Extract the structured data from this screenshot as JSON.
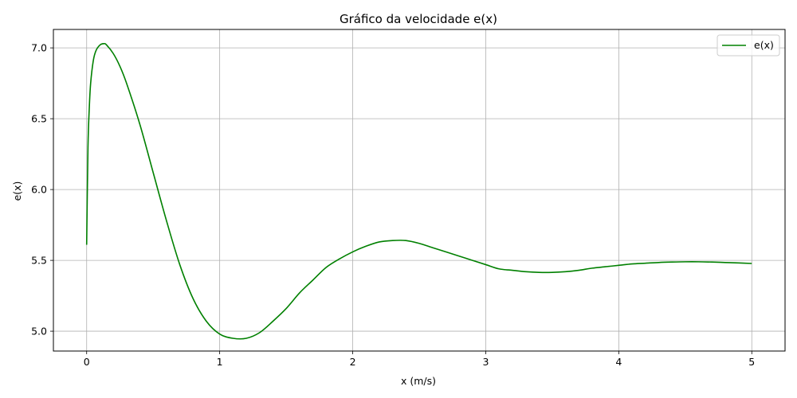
{
  "chart_data": {
    "type": "line",
    "title": "Gráfico da velocidade e(x)",
    "xlabel": "x (m/s)",
    "ylabel": "e(x)",
    "xlim": [
      -0.25,
      5.25
    ],
    "ylim": [
      4.86,
      7.13
    ],
    "xticks": [
      0,
      1,
      2,
      3,
      4,
      5
    ],
    "xtick_labels": [
      "0",
      "1",
      "2",
      "3",
      "4",
      "5"
    ],
    "yticks": [
      5.0,
      5.5,
      6.0,
      6.5,
      7.0
    ],
    "ytick_labels": [
      "5.0",
      "5.5",
      "6.0",
      "6.5",
      "7.0"
    ],
    "grid": true,
    "legend_position": "top-right",
    "series": [
      {
        "name": "e(x)",
        "color": "#008000",
        "x": [
          0,
          0.01,
          0.02,
          0.03,
          0.05,
          0.07,
          0.1,
          0.13,
          0.15,
          0.2,
          0.25,
          0.3,
          0.4,
          0.5,
          0.6,
          0.7,
          0.8,
          0.9,
          1.0,
          1.1,
          1.2,
          1.3,
          1.4,
          1.5,
          1.6,
          1.7,
          1.8,
          1.9,
          2.0,
          2.1,
          2.2,
          2.3,
          2.4,
          2.5,
          2.6,
          2.7,
          2.8,
          2.9,
          3.0,
          3.1,
          3.2,
          3.3,
          3.4,
          3.5,
          3.6,
          3.7,
          3.8,
          3.9,
          4.0,
          4.1,
          4.2,
          4.3,
          4.4,
          4.5,
          4.6,
          4.7,
          4.8,
          4.9,
          5.0
        ],
        "y": [
          5.61,
          6.3,
          6.58,
          6.75,
          6.91,
          6.98,
          7.02,
          7.03,
          7.02,
          6.96,
          6.87,
          6.75,
          6.46,
          6.12,
          5.78,
          5.47,
          5.23,
          5.07,
          4.98,
          4.95,
          4.95,
          4.99,
          5.07,
          5.16,
          5.27,
          5.36,
          5.45,
          5.51,
          5.56,
          5.6,
          5.63,
          5.64,
          5.64,
          5.62,
          5.59,
          5.56,
          5.53,
          5.5,
          5.47,
          5.44,
          5.43,
          5.42,
          5.415,
          5.415,
          5.42,
          5.43,
          5.445,
          5.455,
          5.465,
          5.475,
          5.48,
          5.485,
          5.488,
          5.49,
          5.49,
          5.488,
          5.485,
          5.482,
          5.478
        ]
      }
    ]
  }
}
